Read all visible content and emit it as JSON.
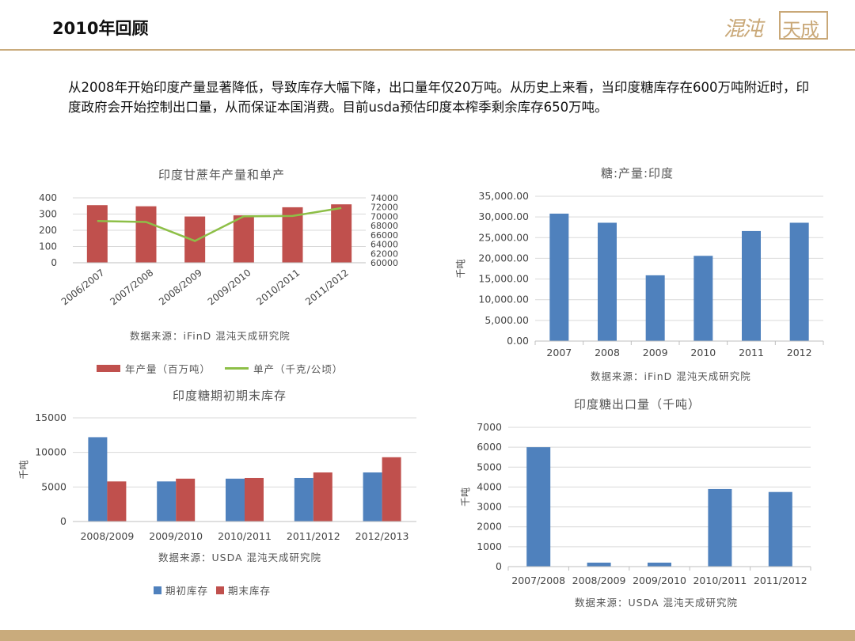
{
  "header": {
    "title": "2010年回顾",
    "logo_text": "混沌天成"
  },
  "intro": "从2008年开始印度产量显著降低，导致库存大幅下降，出口量年仅20万吨。从历史上来看，当印度糖库存在600万吨附近时，印度政府会开始控制出口量，从而保证本国消费。目前usda预估印度本榨季剩余库存650万吨。",
  "colors": {
    "red": "#c0504d",
    "blue": "#4f81bd",
    "green": "#8dbf47",
    "gold": "#c9ab7c"
  },
  "charts": {
    "c1": {
      "title": "印度甘蔗年产量和单产",
      "source": "数据来源：iFinD 混沌天成研究院",
      "legend_bar": "年产量（百万吨）",
      "legend_line": "单产（千克/公顷）"
    },
    "c2": {
      "title": "糖:产量:印度",
      "ylabel": "千吨",
      "source": "数据来源：iFinD 混沌天成研究院"
    },
    "c3": {
      "title": "印度糖期初期末库存",
      "ylabel": "千吨",
      "source": "数据来源：USDA 混沌天成研究院",
      "legend_a": "期初库存",
      "legend_b": "期末库存"
    },
    "c4": {
      "title": "印度糖出口量（千吨）",
      "ylabel": "千吨",
      "source": "数据来源：USDA 混沌天成研究院"
    }
  },
  "chart_data": [
    {
      "type": "bar",
      "title": "印度甘蔗年产量和单产",
      "categories": [
        "2006/2007",
        "2007/2008",
        "2008/2009",
        "2009/2010",
        "2010/2011",
        "2011/2012"
      ],
      "series": [
        {
          "name": "年产量（百万吨）",
          "values": [
            355,
            348,
            285,
            292,
            342,
            360
          ],
          "axis": "left"
        },
        {
          "name": "单产（千克/公顷）",
          "values": [
            69000,
            68800,
            64700,
            70000,
            70100,
            71800
          ],
          "axis": "right",
          "type": "line"
        }
      ],
      "ylim": [
        0,
        400
      ],
      "y2lim": [
        60000,
        74000
      ],
      "yticks": [
        0,
        100,
        200,
        300,
        400
      ],
      "y2ticks": [
        60000,
        62000,
        64000,
        66000,
        68000,
        70000,
        72000,
        74000
      ],
      "legend": "bottom"
    },
    {
      "type": "bar",
      "title": "糖:产量:印度",
      "ylabel": "千吨",
      "categories": [
        "2007",
        "2008",
        "2009",
        "2010",
        "2011",
        "2012"
      ],
      "values": [
        30800,
        28600,
        15900,
        20600,
        26600,
        28600
      ],
      "ylim": [
        0,
        35000
      ],
      "yticks": [
        "0.00",
        "5,000.00",
        "10,000.00",
        "15,000.00",
        "20,000.00",
        "25,000.00",
        "30,000.00",
        "35,000.00"
      ]
    },
    {
      "type": "bar",
      "title": "印度糖期初期末库存",
      "ylabel": "千吨",
      "categories": [
        "2008/2009",
        "2009/2010",
        "2010/2011",
        "2011/2012",
        "2012/2013"
      ],
      "series": [
        {
          "name": "期初库存",
          "values": [
            12200,
            5800,
            6200,
            6300,
            7100
          ]
        },
        {
          "name": "期末库存",
          "values": [
            5800,
            6200,
            6300,
            7100,
            9300
          ]
        }
      ],
      "ylim": [
        0,
        15000
      ],
      "yticks": [
        0,
        5000,
        10000,
        15000
      ],
      "legend": "bottom"
    },
    {
      "type": "bar",
      "title": "印度糖出口量（千吨）",
      "ylabel": "千吨",
      "categories": [
        "2007/2008",
        "2008/2009",
        "2009/2010",
        "2010/2011",
        "2011/2012"
      ],
      "values": [
        6000,
        200,
        200,
        3900,
        3750
      ],
      "ylim": [
        0,
        7000
      ],
      "yticks": [
        0,
        1000,
        2000,
        3000,
        4000,
        5000,
        6000,
        7000
      ]
    }
  ]
}
